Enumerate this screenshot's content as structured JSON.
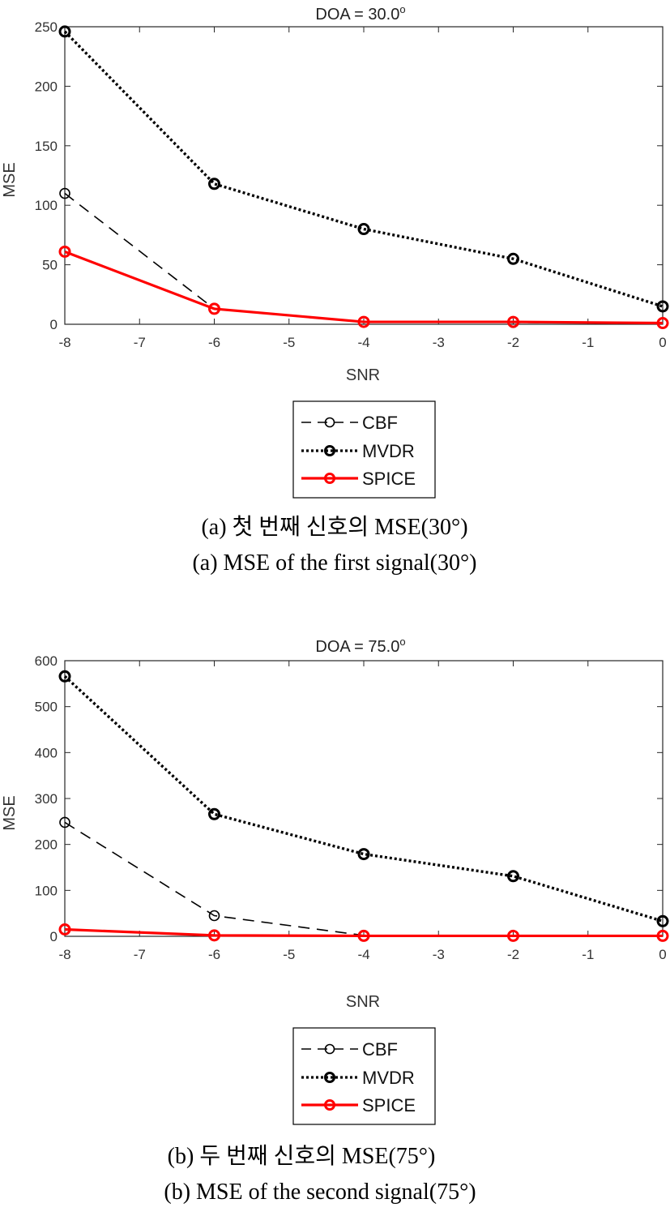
{
  "chart_data": [
    {
      "type": "line",
      "title": "DOA = 30.0",
      "title_sup": "o",
      "xlabel": "SNR",
      "ylabel": "MSE",
      "x": [
        -8,
        -6,
        -4,
        -2,
        0
      ],
      "xlim": [
        -8,
        0
      ],
      "ylim": [
        0,
        250
      ],
      "xticks": [
        -8,
        -7,
        -6,
        -5,
        -4,
        -3,
        -2,
        -1,
        0
      ],
      "yticks": [
        0,
        50,
        100,
        150,
        200,
        250
      ],
      "grid": false,
      "legend_position": "below",
      "series": [
        {
          "name": "CBF",
          "style": "dashed",
          "color": "#000000",
          "values": [
            110,
            13,
            2,
            1.5,
            1
          ]
        },
        {
          "name": "MVDR",
          "style": "dotted",
          "color": "#000000",
          "values": [
            246,
            118,
            80,
            55,
            15
          ]
        },
        {
          "name": "SPICE",
          "style": "solid",
          "color": "#ff0000",
          "values": [
            61,
            13,
            2,
            2,
            1
          ]
        }
      ],
      "caption_korean": "(a) 첫 번째 신호의 MSE(30°)",
      "caption_english": "(a) MSE of the first signal(30°)"
    },
    {
      "type": "line",
      "title": "DOA = 75.0",
      "title_sup": "o",
      "xlabel": "SNR",
      "ylabel": "MSE",
      "x": [
        -8,
        -6,
        -4,
        -2,
        0
      ],
      "xlim": [
        -8,
        0
      ],
      "ylim": [
        0,
        600
      ],
      "xticks": [
        -8,
        -7,
        -6,
        -5,
        -4,
        -3,
        -2,
        -1,
        0
      ],
      "yticks": [
        0,
        100,
        200,
        300,
        400,
        500,
        600
      ],
      "grid": false,
      "legend_position": "below",
      "series": [
        {
          "name": "CBF",
          "style": "dashed",
          "color": "#000000",
          "values": [
            248,
            45,
            2,
            1,
            1
          ]
        },
        {
          "name": "MVDR",
          "style": "dotted",
          "color": "#000000",
          "values": [
            566,
            266,
            179,
            131,
            33
          ]
        },
        {
          "name": "SPICE",
          "style": "solid",
          "color": "#ff0000",
          "values": [
            15,
            2,
            1,
            1,
            1
          ]
        }
      ],
      "caption_korean": "(b) 두 번째 신호의 MSE(75°)",
      "caption_english": "(b) MSE of the second signal(75°)"
    }
  ]
}
